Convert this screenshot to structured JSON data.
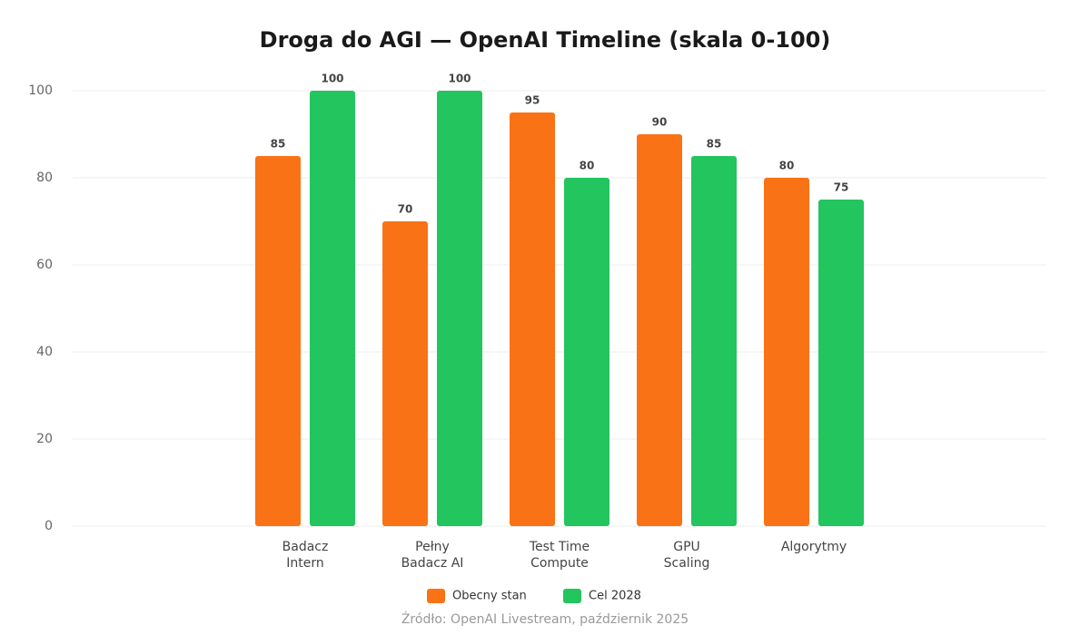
{
  "chart_data": {
    "type": "bar",
    "title": "Droga do AGI — OpenAI Timeline (skala 0-100)",
    "categories": [
      [
        "Badacz",
        "Intern"
      ],
      [
        "Pełny",
        "Badacz AI"
      ],
      [
        "Test Time",
        "Compute"
      ],
      [
        "GPU",
        "Scaling"
      ],
      [
        "Algorytmy"
      ]
    ],
    "series": [
      {
        "name": "Obecny stan",
        "color": "#f97316",
        "values": [
          85,
          70,
          95,
          90,
          80
        ]
      },
      {
        "name": "Cel 2028",
        "color": "#22c55e",
        "values": [
          100,
          100,
          80,
          85,
          75
        ]
      }
    ],
    "ylim": [
      0,
      100
    ],
    "yticks": [
      0,
      20,
      40,
      60,
      80,
      100
    ],
    "grid": true,
    "source": "Źródło: OpenAI Livestream, październik 2025"
  }
}
